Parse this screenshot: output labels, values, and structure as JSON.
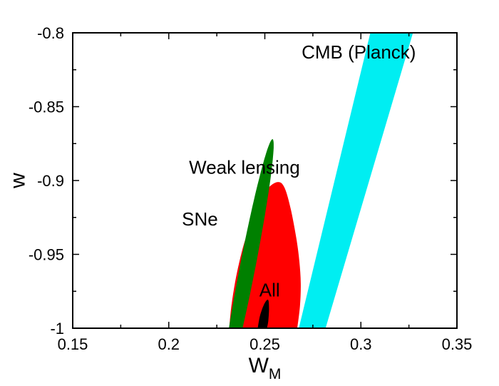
{
  "chart_data": {
    "type": "scatter",
    "xlabel": "W",
    "xlabel_sub": "M",
    "ylabel": "w",
    "xlim": [
      0.15,
      0.35
    ],
    "ylim": [
      -1,
      -0.8
    ],
    "x_ticks": [
      0.15,
      0.2,
      0.25,
      0.3,
      0.35
    ],
    "x_tick_labels": [
      "0.15",
      "0.2",
      "0.25",
      "0.3",
      "0.35"
    ],
    "y_ticks": [
      -1,
      -0.95,
      -0.9,
      -0.85,
      -0.8
    ],
    "y_tick_labels": [
      "-1",
      "-0.95",
      "-0.9",
      "-0.85",
      "-0.8"
    ],
    "grid": false,
    "regions": [
      {
        "label": "CMB (Planck)",
        "color": "#00EEF2",
        "shape": "band",
        "polygon": [
          [
            0.2677,
            -1.0
          ],
          [
            0.2816,
            -1.0
          ],
          [
            0.3271,
            -0.8
          ],
          [
            0.3049,
            -0.8
          ]
        ]
      },
      {
        "label": "Weak lensing",
        "color": "#FF0000",
        "shape": "blob",
        "polygon": [
          [
            0.2315,
            -1.0
          ],
          [
            0.2326,
            -0.985
          ],
          [
            0.2351,
            -0.965
          ],
          [
            0.2387,
            -0.945
          ],
          [
            0.2426,
            -0.93
          ],
          [
            0.247,
            -0.915
          ],
          [
            0.2518,
            -0.905
          ],
          [
            0.2569,
            -0.901
          ],
          [
            0.2603,
            -0.905
          ],
          [
            0.2636,
            -0.92
          ],
          [
            0.2665,
            -0.94
          ],
          [
            0.268,
            -0.955
          ],
          [
            0.2687,
            -0.97
          ],
          [
            0.2683,
            -0.985
          ],
          [
            0.2669,
            -1.0
          ]
        ]
      },
      {
        "label": "SNe",
        "color": "#008000",
        "shape": "ellipse",
        "center": [
          0.2412,
          -0.9575
        ],
        "semi_major_axis": [
          0.0128,
          0.0855
        ],
        "semi_minor_axis": [
          -0.004,
          0.0006
        ],
        "clip_ylim": [
          -1,
          -0.8
        ]
      },
      {
        "label": "All",
        "color": "#000000",
        "shape": "blob",
        "polygon": [
          [
            0.2463,
            -1.0
          ],
          [
            0.2474,
            -0.992
          ],
          [
            0.2489,
            -0.986
          ],
          [
            0.2504,
            -0.982
          ],
          [
            0.2518,
            -0.981
          ],
          [
            0.2522,
            -0.987
          ],
          [
            0.2518,
            -0.995
          ],
          [
            0.2511,
            -1.0
          ]
        ]
      }
    ],
    "annotations": [
      {
        "text": "CMB (Planck)",
        "x": 0.2989,
        "y": -0.8175
      },
      {
        "text": "Weak lensing",
        "x": 0.2394,
        "y": -0.8955
      },
      {
        "text": "SNe",
        "x": 0.2162,
        "y": -0.9305
      },
      {
        "text": "All",
        "x": 0.2525,
        "y": -0.9785
      }
    ]
  }
}
